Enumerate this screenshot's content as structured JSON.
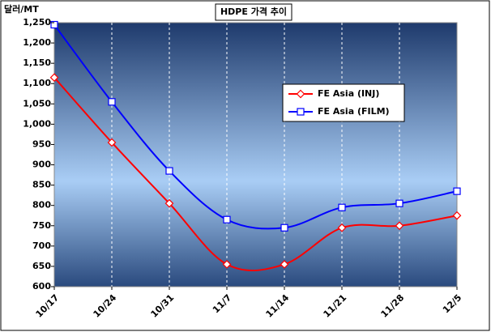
{
  "chart_data": {
    "type": "line",
    "title": "HDPE 가격 추이",
    "y_label": "달러/MT",
    "categories": [
      "10/17",
      "10/24",
      "10/31",
      "11/7",
      "11/14",
      "11/21",
      "11/28",
      "12/5"
    ],
    "series": [
      {
        "name": "FE Asia (INJ)",
        "color": "#ff0000",
        "marker": "diamond",
        "values": [
          1115,
          955,
          805,
          655,
          655,
          745,
          750,
          775
        ]
      },
      {
        "name": "FE Asia (FILM)",
        "color": "#0000ff",
        "marker": "square",
        "values": [
          1245,
          1055,
          885,
          765,
          745,
          795,
          805,
          835
        ]
      }
    ],
    "ylim": [
      600,
      1250
    ],
    "yticks": [
      600,
      650,
      700,
      750,
      800,
      850,
      900,
      950,
      {
        "value": 1000,
        "label": "1,000"
      },
      {
        "value": 1050,
        "label": "1,050"
      },
      {
        "value": 1100,
        "label": "1,100"
      },
      {
        "value": 1150,
        "label": "1,150"
      },
      {
        "value": 1200,
        "label": "1,200"
      },
      {
        "value": 1250,
        "label": "1,250"
      }
    ],
    "grid": true
  }
}
